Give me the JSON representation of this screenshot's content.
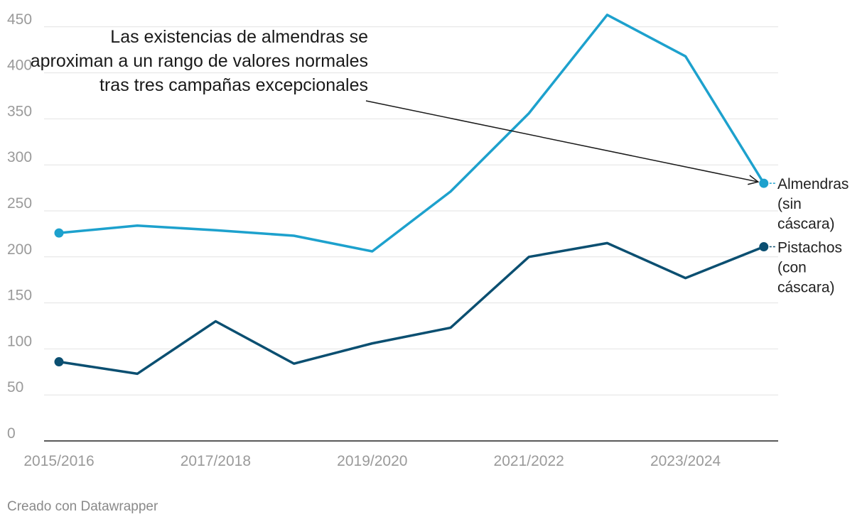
{
  "chart_data": {
    "type": "line",
    "categories": [
      "2015/2016",
      "2016/2017",
      "2017/2018",
      "2018/2019",
      "2019/2020",
      "2020/2021",
      "2021/2022",
      "2022/2023",
      "2023/2024",
      "2024/2025"
    ],
    "x_tick_labels": [
      "2015/2016",
      "2017/2018",
      "2019/2020",
      "2021/2022",
      "2023/2024"
    ],
    "y_ticks": [
      0,
      50,
      100,
      150,
      200,
      250,
      300,
      350,
      400,
      450
    ],
    "ylim": [
      0,
      465
    ],
    "grid": true,
    "series": [
      {
        "name": "Almendras (sin cáscara)",
        "label_lines": [
          "Almendras",
          "(sin",
          "cáscara)"
        ],
        "color": "#1da1cd",
        "values": [
          226,
          234,
          229,
          223,
          206,
          271,
          356,
          463,
          418,
          280
        ]
      },
      {
        "name": "Pistachos (con cáscara)",
        "label_lines": [
          "Pistachos",
          "(con",
          "cáscara)"
        ],
        "color": "#0b4f71",
        "values": [
          86,
          73,
          130,
          84,
          106,
          123,
          200,
          215,
          177,
          211
        ]
      }
    ],
    "annotation": {
      "lines": [
        "Las existencias de almendras se",
        "aproximan a un rango de valores normales",
        "tras tres campañas excepcionales"
      ],
      "target_series": 0,
      "target_index": 9
    }
  },
  "footer": "Creado con Datawrapper"
}
